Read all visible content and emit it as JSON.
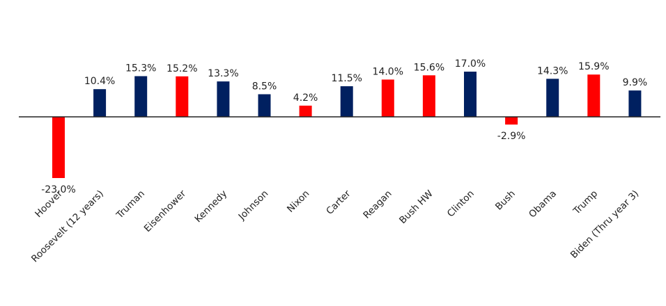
{
  "chart_data": {
    "type": "bar",
    "categories": [
      "Hoover",
      "Roosevelt (12 years)",
      "Truman",
      "Eisenhower",
      "Kennedy",
      "Johnson",
      "Nixon",
      "Carter",
      "Reagan",
      "Bush HW",
      "Clinton",
      "Bush",
      "Obama",
      "Trump",
      "Biden (Thru year 3)"
    ],
    "values": [
      -23.0,
      10.4,
      15.3,
      15.2,
      13.3,
      8.5,
      4.2,
      11.5,
      14.0,
      15.6,
      17.0,
      -2.9,
      14.3,
      15.9,
      9.9
    ],
    "value_labels": [
      "-23.0%",
      "10.4%",
      "15.3%",
      "15.2%",
      "13.3%",
      "8.5%",
      "4.2%",
      "11.5%",
      "14.0%",
      "15.6%",
      "17.0%",
      "-2.9%",
      "14.3%",
      "15.9%",
      "9.9%"
    ],
    "party_colors": [
      "#ff0000",
      "#002060",
      "#002060",
      "#ff0000",
      "#002060",
      "#002060",
      "#ff0000",
      "#002060",
      "#ff0000",
      "#ff0000",
      "#002060",
      "#ff0000",
      "#002060",
      "#ff0000",
      "#002060"
    ],
    "title": "",
    "xlabel": "",
    "ylabel": "",
    "ylim": [
      -25,
      19
    ],
    "grid": false,
    "legend": "none",
    "colors": {
      "republican": "#ff0000",
      "democrat": "#002060",
      "axis": "#222222"
    }
  }
}
